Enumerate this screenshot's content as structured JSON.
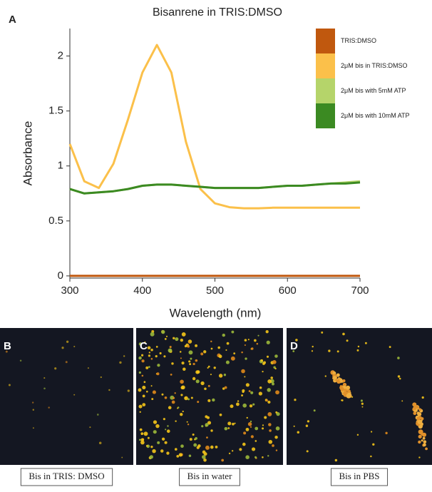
{
  "chart_data": {
    "type": "line",
    "panel_label": "A",
    "title": "Bisanrene in TRIS:DMSO",
    "x_label": "Wavelength (nm)",
    "y_label": "Absorbance",
    "x": [
      300,
      320,
      340,
      360,
      380,
      400,
      420,
      440,
      460,
      480,
      500,
      520,
      540,
      560,
      580,
      600,
      620,
      640,
      660,
      680,
      700
    ],
    "series": [
      {
        "name": "TRIS:DMSO",
        "color": "#c0580e",
        "values": [
          0,
          0,
          0,
          0,
          0,
          0,
          0,
          0,
          0,
          0,
          0,
          0,
          0,
          0,
          0,
          0,
          0,
          0,
          0,
          0,
          0
        ]
      },
      {
        "name": "2μM bis in TRIS:DMSO",
        "color": "#fbc04a",
        "values": [
          1.2,
          0.86,
          0.8,
          1.02,
          1.42,
          1.85,
          2.1,
          1.85,
          1.22,
          0.79,
          0.66,
          0.625,
          0.615,
          0.615,
          0.62,
          0.62,
          0.62,
          0.62,
          0.62,
          0.62,
          0.62
        ]
      },
      {
        "name": "2μM bis with 5mM ATP",
        "color": "#b5d46a",
        "values": [
          0.79,
          0.75,
          0.76,
          0.77,
          0.79,
          0.82,
          0.83,
          0.83,
          0.82,
          0.81,
          0.8,
          0.8,
          0.8,
          0.8,
          0.81,
          0.82,
          0.82,
          0.83,
          0.84,
          0.85,
          0.86
        ]
      },
      {
        "name": "2μM bis with 10mM ATP",
        "color": "#3b8a22",
        "values": [
          0.79,
          0.75,
          0.76,
          0.77,
          0.79,
          0.82,
          0.83,
          0.83,
          0.82,
          0.81,
          0.8,
          0.8,
          0.8,
          0.8,
          0.81,
          0.82,
          0.82,
          0.83,
          0.84,
          0.84,
          0.85
        ]
      }
    ],
    "xlim": [
      300,
      700
    ],
    "xticks": [
      300,
      400,
      500,
      600,
      700
    ],
    "ylim": [
      -0.02,
      2.25
    ],
    "yticks": [
      0,
      0.5,
      1,
      1.5,
      2
    ],
    "legend": "upper right",
    "grid": false
  },
  "panels": [
    {
      "label": "B",
      "caption": "Bis in TRIS: DMSO"
    },
    {
      "label": "C",
      "caption": "Bis in water"
    },
    {
      "label": "D",
      "caption": "Bis in PBS"
    }
  ]
}
